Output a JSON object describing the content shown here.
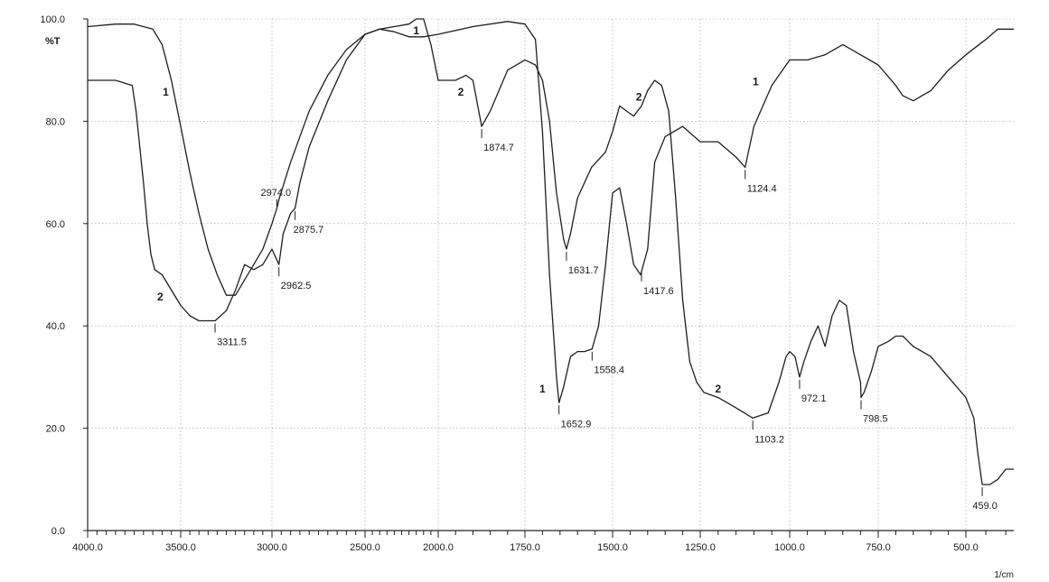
{
  "chart_data": {
    "type": "line",
    "ylabel": "%T",
    "xunit": "1/cm",
    "xlim": [
      4000,
      380
    ],
    "ylim": [
      0,
      100
    ],
    "x_reversed": true,
    "grid": true,
    "x_ticks": [
      {
        "value": 4000,
        "label": "4000.0"
      },
      {
        "value": 3500,
        "label": "3500.0"
      },
      {
        "value": 3000,
        "label": "3000.0"
      },
      {
        "value": 2500,
        "label": "2500.0"
      },
      {
        "value": 2000,
        "label": "2000.0"
      },
      {
        "value": 1750,
        "label": "1750.0"
      },
      {
        "value": 1500,
        "label": "1500.0"
      },
      {
        "value": 1250,
        "label": "1250.0"
      },
      {
        "value": 1000,
        "label": "1000.0"
      },
      {
        "value": 750,
        "label": "750.0"
      },
      {
        "value": 500,
        "label": "500.0"
      }
    ],
    "y_ticks": [
      {
        "value": 0,
        "label": "0.0"
      },
      {
        "value": 20,
        "label": "20.0"
      },
      {
        "value": 40,
        "label": "40.0"
      },
      {
        "value": 60,
        "label": "60.0"
      },
      {
        "value": 80,
        "label": "80.0"
      },
      {
        "value": 100,
        "label": "100.0"
      }
    ],
    "series": [
      {
        "name": "1",
        "label_positions": [
          [
            3580,
            85
          ],
          [
            2150,
            97
          ],
          [
            1700,
            27
          ],
          [
            1095,
            87
          ]
        ],
        "x": [
          4000,
          3850,
          3750,
          3650,
          3600,
          3550,
          3500,
          3450,
          3400,
          3350,
          3300,
          3250,
          3200,
          3150,
          3100,
          3050,
          3000,
          2974,
          2960,
          2900,
          2800,
          2700,
          2600,
          2500,
          2400,
          2300,
          2250,
          2200,
          2100,
          2000,
          1900,
          1800,
          1750,
          1720,
          1700,
          1680,
          1660,
          1652.9,
          1640,
          1620,
          1600,
          1580,
          1558.4,
          1540,
          1520,
          1500,
          1480,
          1460,
          1440,
          1420,
          1400,
          1380,
          1350,
          1300,
          1250,
          1200,
          1150,
          1124.4,
          1100,
          1050,
          1000,
          950,
          900,
          850,
          800,
          750,
          700,
          680,
          650,
          600,
          550,
          500,
          450,
          420,
          380
        ],
        "y": [
          98.5,
          99,
          99,
          98,
          95,
          88,
          79,
          70,
          62,
          55,
          50,
          46,
          46,
          49,
          52,
          55,
          60,
          63,
          65,
          72,
          82,
          89,
          94,
          97,
          98,
          97.5,
          97,
          96.5,
          96.5,
          97,
          98.5,
          99.5,
          99,
          96,
          78,
          50,
          30,
          25,
          28,
          34,
          35,
          35,
          35.5,
          40,
          52,
          66,
          67,
          60,
          52,
          50,
          55,
          72,
          77,
          79,
          76,
          76,
          73,
          71,
          79,
          87,
          92,
          92,
          93,
          95,
          93,
          91,
          87,
          85,
          84,
          86,
          90,
          93,
          96,
          98,
          98
        ]
      },
      {
        "name": "2",
        "label_positions": [
          [
            3610,
            45
          ],
          [
            1935,
            85
          ],
          [
            1425,
            84
          ],
          [
            1200,
            27
          ]
        ],
        "x": [
          4000,
          3850,
          3760,
          3740,
          3720,
          3700,
          3680,
          3660,
          3640,
          3600,
          3550,
          3500,
          3450,
          3400,
          3350,
          3311.5,
          3250,
          3200,
          3150,
          3100,
          3050,
          3000,
          2962.5,
          2940,
          2900,
          2875.7,
          2850,
          2800,
          2700,
          2600,
          2500,
          2400,
          2300,
          2200,
          2150,
          2100,
          2050,
          2000,
          1950,
          1920,
          1900,
          1874.7,
          1850,
          1800,
          1750,
          1720,
          1700,
          1680,
          1660,
          1640,
          1631.7,
          1620,
          1600,
          1560,
          1520,
          1500,
          1480,
          1460,
          1440,
          1417.6,
          1400,
          1380,
          1360,
          1340,
          1320,
          1300,
          1280,
          1260,
          1240,
          1200,
          1150,
          1103.2,
          1060,
          1030,
          1010,
          1000,
          985,
          972.1,
          960,
          940,
          920,
          900,
          880,
          860,
          840,
          820,
          800,
          798.5,
          790,
          770,
          750,
          720,
          700,
          680,
          650,
          600,
          550,
          500,
          480,
          470,
          459,
          440,
          420,
          400,
          380
        ],
        "y": [
          88,
          88,
          87,
          82,
          75,
          68,
          60,
          54,
          51,
          50,
          47,
          44,
          42,
          41,
          41,
          41,
          43,
          47,
          52,
          51,
          52,
          55,
          52,
          58,
          62,
          63,
          68,
          75,
          84,
          92,
          97,
          98,
          98.5,
          99,
          100,
          100,
          95,
          88,
          88,
          89,
          88,
          79,
          82,
          90,
          92,
          91,
          88,
          80,
          66,
          57,
          55,
          58,
          65,
          71,
          74,
          78,
          83,
          82,
          81,
          83,
          86,
          88,
          87,
          82,
          65,
          45,
          33,
          29,
          27,
          26,
          24,
          22,
          23,
          29,
          34,
          35,
          34,
          30,
          33,
          37,
          40,
          36,
          42,
          45,
          44,
          35,
          29,
          26,
          27,
          31,
          36,
          37,
          38,
          38,
          36,
          34,
          30,
          26,
          22,
          15,
          9,
          9,
          10,
          12,
          12
        ]
      }
    ],
    "peak_labels": [
      {
        "x": 3311.5,
        "y": 41,
        "label": "3311.5"
      },
      {
        "x": 2974.0,
        "y": 63,
        "label": "2974.0"
      },
      {
        "x": 2962.5,
        "y": 52,
        "label": "2962.5"
      },
      {
        "x": 2875.7,
        "y": 63,
        "label": "2875.7"
      },
      {
        "x": 1874.7,
        "y": 79,
        "label": "1874.7"
      },
      {
        "x": 1652.9,
        "y": 25,
        "label": "1652.9"
      },
      {
        "x": 1631.7,
        "y": 55,
        "label": "1631.7"
      },
      {
        "x": 1558.4,
        "y": 35.5,
        "label": "1558.4"
      },
      {
        "x": 1417.6,
        "y": 51,
        "label": "1417.6"
      },
      {
        "x": 1124.4,
        "y": 71,
        "label": "1124.4"
      },
      {
        "x": 1103.2,
        "y": 22,
        "label": "1103.2"
      },
      {
        "x": 972.1,
        "y": 30,
        "label": "972.1"
      },
      {
        "x": 798.5,
        "y": 26,
        "label": "798.5"
      },
      {
        "x": 459.0,
        "y": 9,
        "label": "459.0"
      }
    ]
  }
}
